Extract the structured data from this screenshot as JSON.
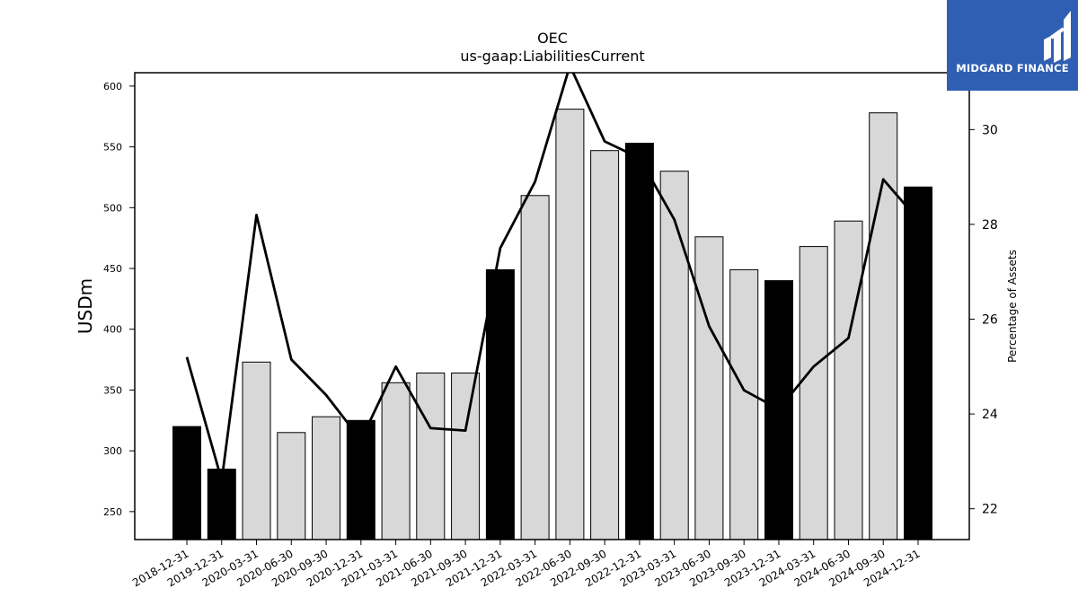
{
  "brand": {
    "name": "MIDGARD FINANCE",
    "color": "#2f5fb3"
  },
  "chart_data": {
    "type": "bar",
    "title": "OEC",
    "subtitle": "us-gaap:LiabilitiesCurrent",
    "ylabel": "USDm",
    "y2label": "Percentage of Assets",
    "ylim": [
      227,
      611
    ],
    "y2lim": [
      21.35,
      31.2
    ],
    "yticks": [
      250,
      300,
      350,
      400,
      450,
      500,
      550,
      600
    ],
    "y2ticks": [
      22,
      24,
      26,
      28,
      30
    ],
    "categories": [
      "2018-12-31",
      "2019-12-31",
      "2020-03-31",
      "2020-06-30",
      "2020-09-30",
      "2020-12-31",
      "2021-03-31",
      "2021-06-30",
      "2021-09-30",
      "2021-12-31",
      "2022-03-31",
      "2022-06-30",
      "2022-09-30",
      "2022-12-31",
      "2023-03-31",
      "2023-06-30",
      "2023-09-30",
      "2023-12-31",
      "2024-03-31",
      "2024-06-30",
      "2024-09-30",
      "2024-12-31"
    ],
    "series": [
      {
        "type": "bar",
        "axis": "left",
        "values": [
          320,
          285,
          373,
          315,
          328,
          325,
          356,
          364,
          364,
          449,
          510,
          581,
          547,
          553,
          530,
          476,
          449,
          440,
          468,
          489,
          578,
          517
        ],
        "annual": [
          true,
          true,
          false,
          false,
          false,
          true,
          false,
          false,
          false,
          true,
          false,
          false,
          false,
          true,
          false,
          false,
          false,
          true,
          false,
          false,
          false,
          true
        ],
        "annual_color": "#000000",
        "quarter_color": "#d8d8d8"
      },
      {
        "type": "line",
        "axis": "right",
        "color": "#000000",
        "values": [
          25.2,
          22.6,
          28.2,
          25.15,
          24.4,
          23.45,
          25.0,
          23.7,
          23.65,
          27.5,
          28.9,
          31.35,
          29.75,
          29.4,
          28.1,
          25.85,
          24.5,
          24.1,
          25.0,
          25.6,
          28.95,
          28.1
        ]
      }
    ]
  }
}
